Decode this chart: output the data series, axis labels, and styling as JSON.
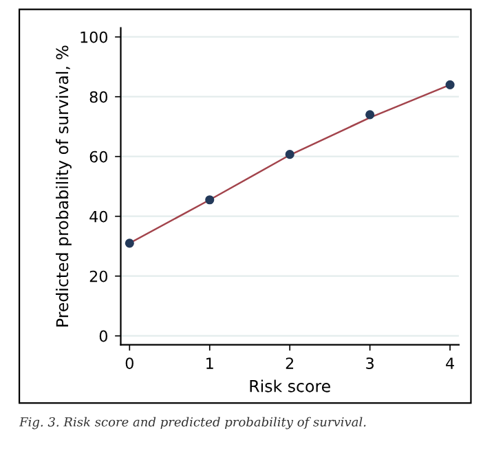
{
  "chart_data": {
    "type": "scatter",
    "xlabel": "Risk score",
    "ylabel": "Predicted probability of survival, %",
    "annotations": [
      "Fig. 3. Risk score and predicted probability of survival."
    ],
    "x": [
      0,
      1,
      2,
      3,
      4
    ],
    "series": [
      {
        "type": "line",
        "color": "#a3444c",
        "x": [
          0,
          1,
          2,
          3,
          4
        ],
        "values": [
          31,
          45.5,
          60.5,
          73,
          84
        ],
        "marker": "none"
      },
      {
        "color": "#243a5a",
        "values": [
          31,
          45.5,
          60.7,
          74,
          84
        ],
        "marker": "circle"
      }
    ],
    "xlim": [
      -0.11,
      4.11
    ],
    "ylim": [
      -3,
      103
    ],
    "xticks": [
      0,
      1,
      2,
      3,
      4
    ],
    "yticks": [
      0,
      20,
      40,
      60,
      80,
      100
    ],
    "grid": "y",
    "legend": false
  }
}
